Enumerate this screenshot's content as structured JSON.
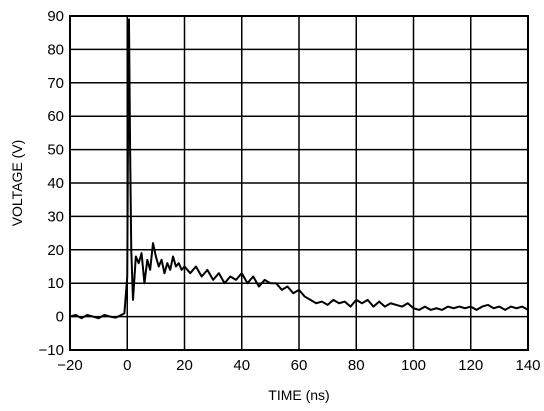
{
  "chart_data": {
    "type": "line",
    "title": "",
    "xlabel": "TIME (ns)",
    "ylabel": "VOLTAGE (V)",
    "xlim": [
      -20,
      140
    ],
    "ylim": [
      -10,
      90
    ],
    "xticks": [
      -20,
      0,
      20,
      40,
      60,
      80,
      100,
      120,
      140
    ],
    "yticks": [
      -10,
      0,
      10,
      20,
      30,
      40,
      50,
      60,
      70,
      80,
      90
    ],
    "xtick_labels": [
      "−20",
      "0",
      "20",
      "40",
      "60",
      "80",
      "100",
      "120",
      "140"
    ],
    "ytick_labels": [
      "−10",
      "0",
      "10",
      "20",
      "30",
      "40",
      "50",
      "60",
      "70",
      "80",
      "90"
    ],
    "grid": true,
    "line_color": "#000000",
    "series": [
      {
        "x": [
          -20,
          -18,
          -16,
          -14,
          -12,
          -10,
          -8,
          -6,
          -4,
          -2,
          -1,
          0,
          0.3,
          0.6,
          1,
          1.4,
          2,
          3,
          4,
          5,
          6,
          7,
          8,
          9,
          10,
          11,
          12,
          13,
          14,
          15,
          16,
          17,
          18,
          19,
          20,
          22,
          24,
          26,
          28,
          30,
          32,
          34,
          36,
          38,
          40,
          42,
          44,
          46,
          48,
          50,
          52,
          54,
          56,
          58,
          60,
          62,
          64,
          66,
          68,
          70,
          72,
          74,
          76,
          78,
          80,
          82,
          84,
          86,
          88,
          90,
          92,
          94,
          96,
          98,
          100,
          102,
          104,
          106,
          108,
          110,
          112,
          114,
          116,
          118,
          120,
          122,
          124,
          126,
          128,
          130,
          132,
          134,
          136,
          138,
          140
        ],
        "y": [
          0,
          0.5,
          -0.5,
          0.5,
          0,
          -0.5,
          0.5,
          0,
          -0.3,
          0.5,
          1,
          12,
          60,
          89,
          50,
          20,
          5,
          18,
          16,
          19,
          10,
          17,
          14,
          22,
          18,
          15,
          17,
          13,
          16,
          14,
          18,
          15,
          16,
          14,
          15,
          13,
          15,
          12,
          14,
          11,
          13,
          10,
          12,
          11,
          13,
          10,
          12,
          9,
          11,
          10,
          10,
          8,
          9,
          7,
          8,
          6,
          5,
          4,
          4.5,
          3.5,
          5,
          4,
          4.5,
          3,
          5,
          4,
          5,
          3,
          4.5,
          3,
          4,
          3.5,
          3,
          4,
          2.5,
          2,
          3,
          2,
          2.5,
          2,
          3,
          2.5,
          3,
          2.5,
          3,
          2,
          3,
          3.5,
          2.5,
          3,
          2,
          3,
          2.5,
          3,
          2
        ]
      }
    ]
  }
}
